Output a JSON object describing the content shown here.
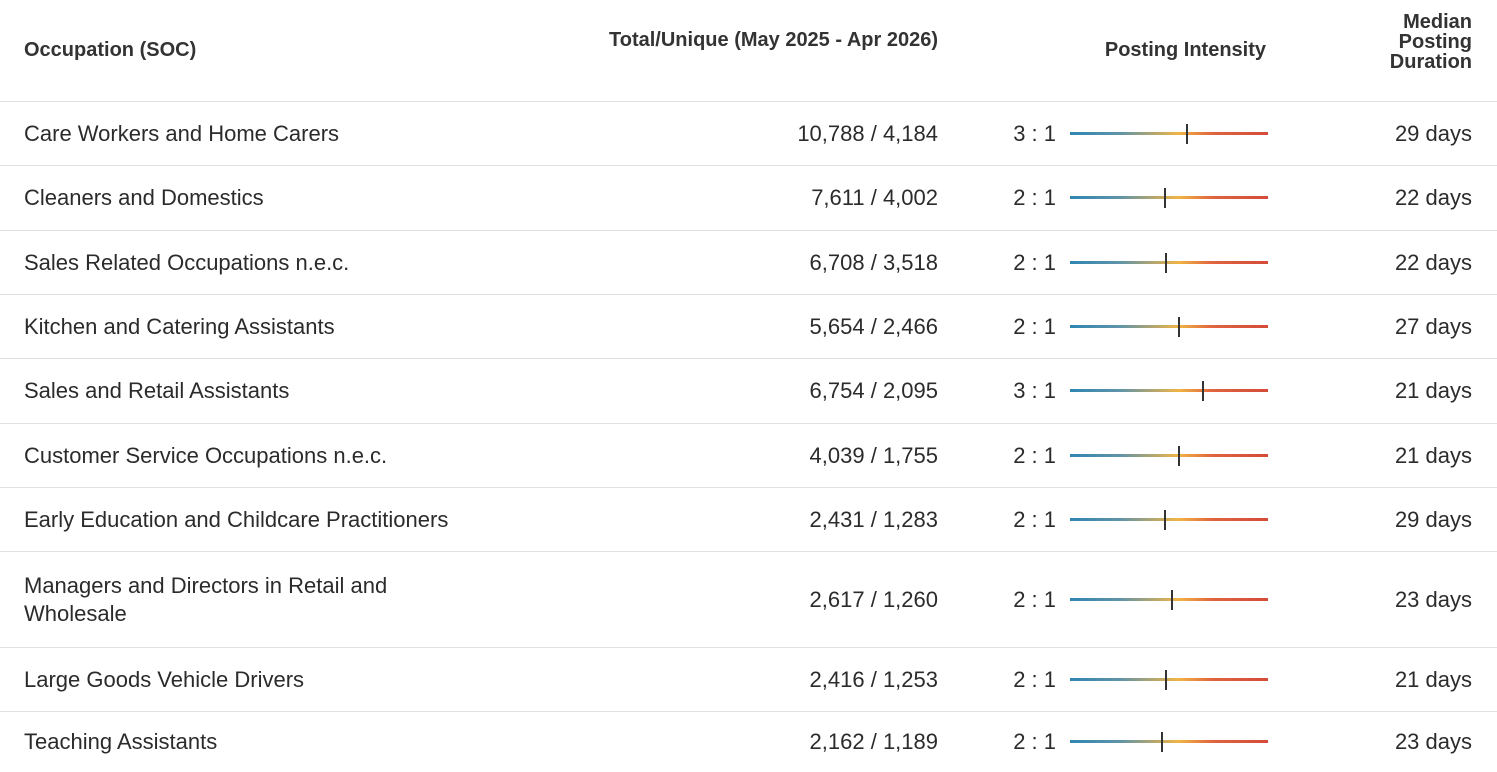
{
  "columns": [
    "Occupation (SOC)",
    "Total/Unique (May 2025 - Apr 2026)",
    "Posting Intensity",
    "Median Posting Duration"
  ],
  "intensity_scale": {
    "min": 0.5,
    "max": 8,
    "log": true
  },
  "rows": [
    {
      "occupation": "Care Workers and Home Carers",
      "total_unique": "10,788 / 4,184",
      "ratio": "3 : 1",
      "intensity": 2.58,
      "duration": "29 days"
    },
    {
      "occupation": "Cleaners and Domestics",
      "total_unique": "7,611 / 4,002",
      "ratio": "2 : 1",
      "intensity": 1.9,
      "duration": "22 days"
    },
    {
      "occupation": "Sales Related Occupations n.e.c.",
      "total_unique": "6,708 / 3,518",
      "ratio": "2 : 1",
      "intensity": 1.91,
      "duration": "22 days"
    },
    {
      "occupation": "Kitchen and Catering Assistants",
      "total_unique": "5,654 / 2,466",
      "ratio": "2 : 1",
      "intensity": 2.29,
      "duration": "27 days"
    },
    {
      "occupation": "Sales and Retail Assistants",
      "total_unique": "6,754 / 2,095",
      "ratio": "3 : 1",
      "intensity": 3.22,
      "duration": "21 days"
    },
    {
      "occupation": "Customer Service Occupations n.e.c.",
      "total_unique": "4,039 / 1,755",
      "ratio": "2 : 1",
      "intensity": 2.3,
      "duration": "21 days"
    },
    {
      "occupation": "Early Education and Childcare Practitioners",
      "total_unique": "2,431 / 1,283",
      "ratio": "2 : 1",
      "intensity": 1.89,
      "duration": "29 days"
    },
    {
      "occupation": "Managers and Directors in Retail and Wholesale",
      "total_unique": "2,617 / 1,260",
      "ratio": "2 : 1",
      "intensity": 2.08,
      "duration": "23 days"
    },
    {
      "occupation": "Large Goods Vehicle Drivers",
      "total_unique": "2,416 / 1,253",
      "ratio": "2 : 1",
      "intensity": 1.93,
      "duration": "21 days"
    },
    {
      "occupation": "Teaching Assistants",
      "total_unique": "2,162 / 1,189",
      "ratio": "2 : 1",
      "intensity": 1.82,
      "duration": "23 days"
    }
  ]
}
